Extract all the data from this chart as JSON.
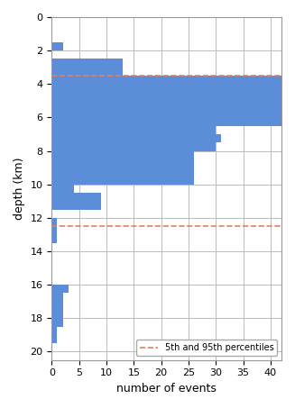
{
  "bin_edges": [
    0,
    0.5,
    1.0,
    1.5,
    2.0,
    2.5,
    3.0,
    3.5,
    4.0,
    4.5,
    5.0,
    5.5,
    6.0,
    6.5,
    7.0,
    7.5,
    8.0,
    8.5,
    9.0,
    9.5,
    10.0,
    10.5,
    11.0,
    11.5,
    12.0,
    12.5,
    13.0,
    13.5,
    14.0,
    14.5,
    15.0,
    15.5,
    16.0,
    16.5,
    17.0,
    17.5,
    18.0,
    18.5,
    19.0,
    19.5,
    20.0
  ],
  "counts": [
    0,
    0,
    0,
    2,
    0,
    13,
    13,
    42,
    42,
    42,
    42,
    42,
    42,
    30,
    31,
    30,
    26,
    26,
    26,
    26,
    4,
    9,
    9,
    0,
    1,
    1,
    1,
    0,
    0,
    0,
    0,
    0,
    3,
    2,
    2,
    2,
    2,
    1,
    1,
    0
  ],
  "percentile_5": 3.5,
  "percentile_95": 12.5,
  "bar_color": "#5b8dd9",
  "percentile_color": "#e08060",
  "xlabel": "number of events",
  "ylabel": "depth (km)",
  "xlim": [
    0,
    42
  ],
  "ylim_min": 0,
  "ylim_max": 20.5,
  "yticks": [
    0,
    2,
    4,
    6,
    8,
    10,
    12,
    14,
    16,
    18,
    20
  ],
  "xticks": [
    0,
    5,
    10,
    15,
    20,
    25,
    30,
    35,
    40
  ],
  "legend_label": "5th and 95th percentiles",
  "grid_color": "#bbbbbb"
}
